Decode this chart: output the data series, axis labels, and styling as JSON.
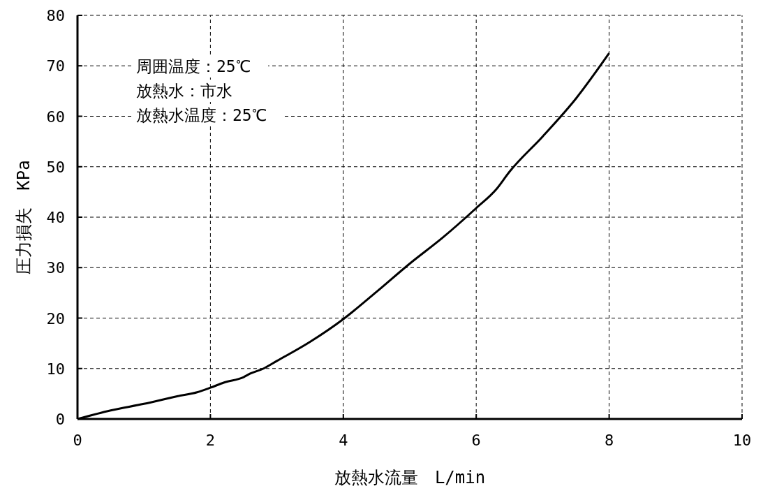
{
  "chart_data": {
    "type": "line",
    "xlabel": "放熱水流量　L/min",
    "ylabel": "圧力損失　KPa",
    "x": [
      0,
      0.5,
      1,
      1.5,
      1.8,
      2,
      2.2,
      2.5,
      2.6,
      2.8,
      3,
      3.5,
      4,
      4.5,
      5,
      5.5,
      6,
      6.3,
      6.5,
      7,
      7.5,
      8
    ],
    "series": [
      {
        "color": "#000000",
        "values": [
          0,
          1.7,
          3,
          4.5,
          5.3,
          6.2,
          7.2,
          8.3,
          9,
          10,
          11.5,
          15.3,
          19.8,
          25.2,
          30.8,
          36,
          41.8,
          45.5,
          49,
          56,
          63.5,
          72.5
        ]
      }
    ],
    "xlim": [
      0,
      10
    ],
    "xticks": [
      0,
      2,
      4,
      6,
      8,
      10
    ],
    "ylim": [
      0,
      80
    ],
    "yticks": [
      0,
      10,
      20,
      30,
      40,
      50,
      60,
      70,
      80
    ],
    "grid": true,
    "line_style": "solid",
    "marker": "none",
    "annotations": [
      "周囲温度：25℃",
      "放熱水：市水",
      "放熱水温度：25℃"
    ]
  }
}
